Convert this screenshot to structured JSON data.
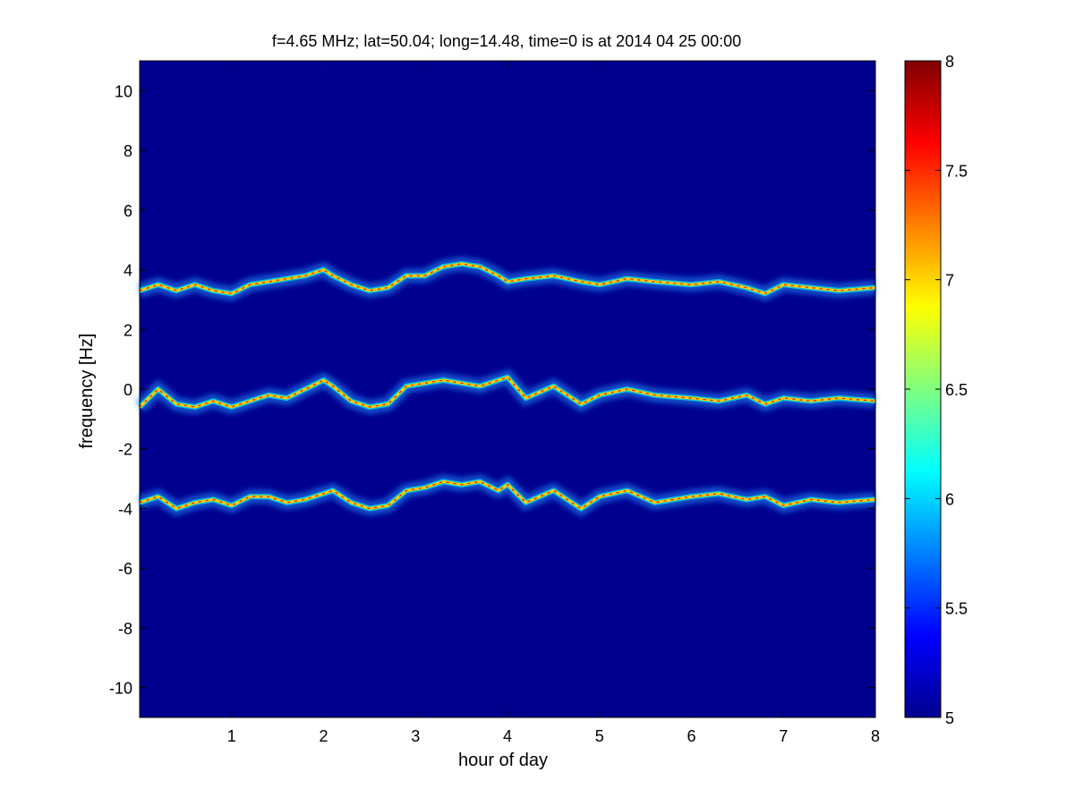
{
  "chart_data": {
    "type": "heatmap",
    "title": "f=4.65 MHz;  lat=50.04; long=14.48, time=0 is at 2014 04 25 00:00",
    "xlabel": "hour of day",
    "ylabel": "frequency [Hz]",
    "xlim": [
      0,
      8
    ],
    "ylim": [
      -11,
      11
    ],
    "x_ticks": [
      "1",
      "2",
      "3",
      "4",
      "5",
      "6",
      "7",
      "8"
    ],
    "y_ticks": [
      "-10",
      "-8",
      "-6",
      "-4",
      "-2",
      "0",
      "2",
      "4",
      "6",
      "8",
      "10"
    ],
    "colorbar": {
      "range": [
        5,
        8
      ],
      "ticks": [
        "5",
        "5.5",
        "6",
        "6.5",
        "7",
        "7.5",
        "8"
      ],
      "colormap": "jet"
    },
    "background_color": "#00008f",
    "series": [
      {
        "x": [
          0,
          0.2,
          0.4,
          0.6,
          0.8,
          1.0,
          1.2,
          1.4,
          1.6,
          1.8,
          2.0,
          2.1,
          2.3,
          2.5,
          2.7,
          2.9,
          3.1,
          3.3,
          3.5,
          3.7,
          3.9,
          4.0,
          4.2,
          4.5,
          4.8,
          5.0,
          5.3,
          5.6,
          6.0,
          6.3,
          6.6,
          6.8,
          7.0,
          7.3,
          7.6,
          8.0
        ],
        "y": [
          3.3,
          3.5,
          3.3,
          3.5,
          3.3,
          3.2,
          3.5,
          3.6,
          3.7,
          3.8,
          4.0,
          3.8,
          3.5,
          3.3,
          3.4,
          3.8,
          3.8,
          4.1,
          4.2,
          4.1,
          3.8,
          3.6,
          3.7,
          3.8,
          3.6,
          3.5,
          3.7,
          3.6,
          3.5,
          3.6,
          3.4,
          3.2,
          3.5,
          3.4,
          3.3,
          3.4
        ]
      },
      {
        "x": [
          0,
          0.2,
          0.4,
          0.6,
          0.8,
          1.0,
          1.2,
          1.4,
          1.6,
          1.8,
          2.0,
          2.1,
          2.3,
          2.5,
          2.7,
          2.9,
          3.1,
          3.3,
          3.5,
          3.7,
          3.9,
          4.0,
          4.2,
          4.5,
          4.8,
          5.0,
          5.3,
          5.6,
          6.0,
          6.3,
          6.6,
          6.8,
          7.0,
          7.3,
          7.6,
          8.0
        ],
        "y": [
          -0.6,
          0,
          -0.5,
          -0.6,
          -0.4,
          -0.6,
          -0.4,
          -0.2,
          -0.3,
          0,
          0.3,
          0.1,
          -0.4,
          -0.6,
          -0.5,
          0.1,
          0.2,
          0.3,
          0.2,
          0.1,
          0.3,
          0.4,
          -0.3,
          0.1,
          -0.5,
          -0.2,
          0,
          -0.2,
          -0.3,
          -0.4,
          -0.2,
          -0.5,
          -0.3,
          -0.4,
          -0.3,
          -0.4
        ]
      },
      {
        "x": [
          0,
          0.2,
          0.4,
          0.6,
          0.8,
          1.0,
          1.2,
          1.4,
          1.6,
          1.8,
          2.0,
          2.1,
          2.3,
          2.5,
          2.7,
          2.9,
          3.1,
          3.3,
          3.5,
          3.7,
          3.9,
          4.0,
          4.2,
          4.5,
          4.8,
          5.0,
          5.3,
          5.6,
          6.0,
          6.3,
          6.6,
          6.8,
          7.0,
          7.3,
          7.6,
          8.0
        ],
        "y": [
          -3.8,
          -3.6,
          -4.0,
          -3.8,
          -3.7,
          -3.9,
          -3.6,
          -3.6,
          -3.8,
          -3.7,
          -3.5,
          -3.4,
          -3.8,
          -4.0,
          -3.9,
          -3.4,
          -3.3,
          -3.1,
          -3.2,
          -3.1,
          -3.4,
          -3.2,
          -3.8,
          -3.4,
          -4.0,
          -3.6,
          -3.4,
          -3.8,
          -3.6,
          -3.5,
          -3.7,
          -3.6,
          -3.9,
          -3.7,
          -3.8,
          -3.7
        ]
      }
    ]
  }
}
